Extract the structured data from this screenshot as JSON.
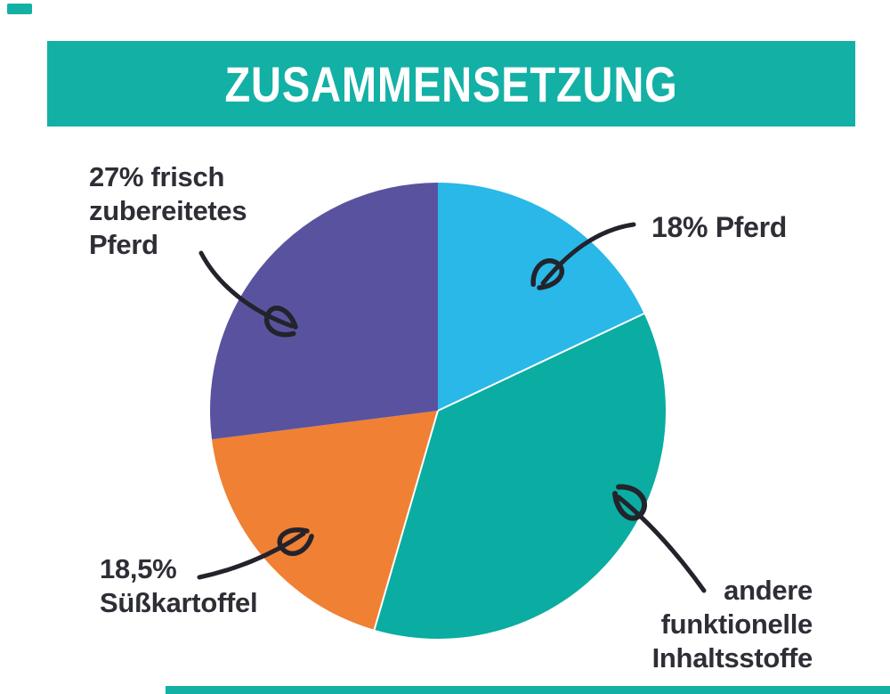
{
  "header": {
    "title": "ZUSAMMENSETZUNG",
    "bg_color": "#13b0a5",
    "text_color": "#ffffff"
  },
  "decor": {
    "accent_color": "#13b0a5"
  },
  "chart_data": {
    "type": "pie",
    "title": "ZUSAMMENSETZUNG",
    "direction": "clockwise",
    "start_angle_deg": 0,
    "legend": false,
    "total": 100,
    "slices": [
      {
        "name": "Pferd",
        "value": 18,
        "color": "#29b8e8",
        "annotation": "18% Pferd",
        "lines": [
          "18% Pferd"
        ]
      },
      {
        "name": "andere funktionelle Inhaltsstoffe",
        "value": 36.5,
        "color": "#0baca1",
        "annotation": "andere funktionelle Inhaltsstoffe",
        "lines": [
          "andere",
          "funktionelle",
          "Inhaltsstoffe"
        ],
        "white_divider": true
      },
      {
        "name": "Süßkartoffel",
        "value": 18.5,
        "color": "#f08033",
        "annotation": "18,5% Süßkartoffel",
        "lines": [
          "18,5%",
          "Süßkartoffel"
        ]
      },
      {
        "name": "frisch zubereitetes Pferd",
        "value": 27,
        "color": "#59539f",
        "annotation": "27% frisch zubereitetes Pferd",
        "lines": [
          "27% frisch",
          "zubereitetes",
          "Pferd"
        ]
      }
    ]
  }
}
